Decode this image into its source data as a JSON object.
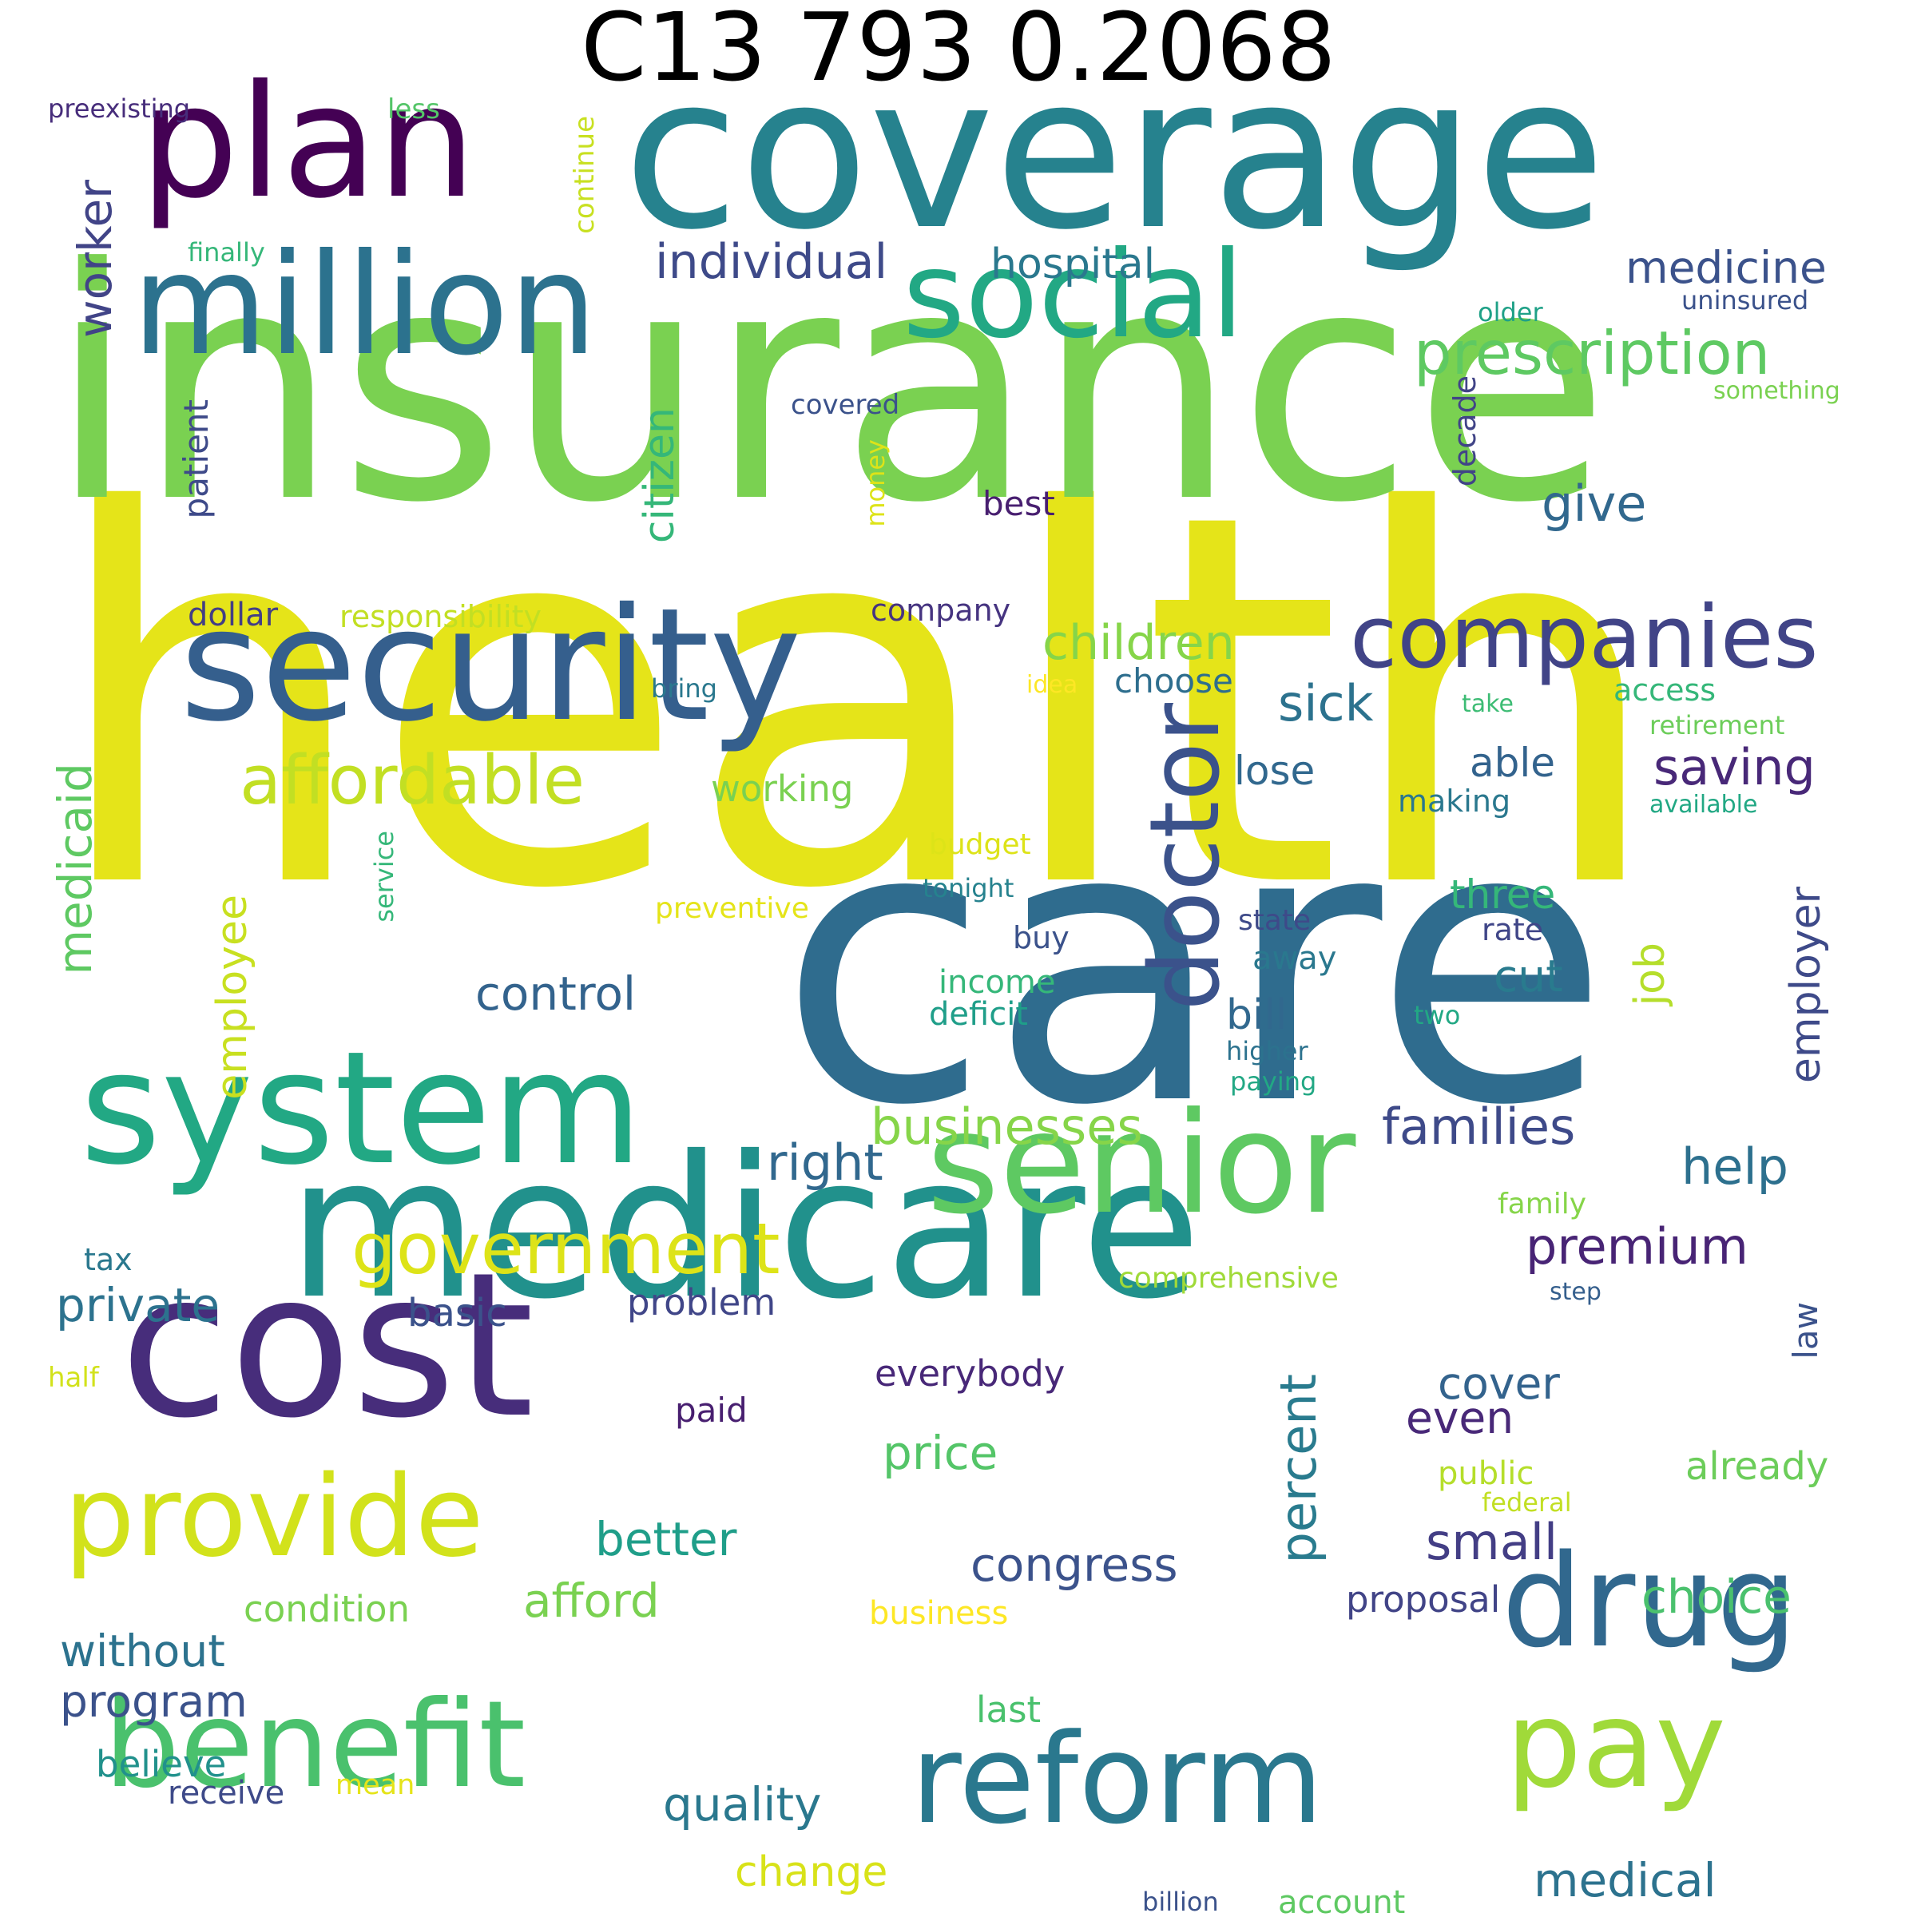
{
  "title": "C13 793 0.2068",
  "words": [
    {
      "text": "health",
      "color": "#e5e419"
    },
    {
      "text": "insurance",
      "color": "#7ad151"
    },
    {
      "text": "care",
      "color": "#2f6c8e"
    },
    {
      "text": "coverage",
      "color": "#26828e"
    },
    {
      "text": "medicare",
      "color": "#21918c"
    },
    {
      "text": "plan",
      "color": "#440154"
    },
    {
      "text": "million",
      "color": "#2c728e"
    },
    {
      "text": "social",
      "color": "#22a884"
    },
    {
      "text": "security",
      "color": "#355f8d"
    },
    {
      "text": "system",
      "color": "#22a884"
    },
    {
      "text": "cost",
      "color": "#472d7b"
    },
    {
      "text": "senior",
      "color": "#5ec962"
    },
    {
      "text": "provide",
      "color": "#d2e21b"
    },
    {
      "text": "benefit",
      "color": "#4ac16d"
    },
    {
      "text": "reform",
      "color": "#2a788e"
    },
    {
      "text": "drug",
      "color": "#31688e"
    },
    {
      "text": "pay",
      "color": "#a0da39"
    },
    {
      "text": "companies",
      "color": "#414487"
    },
    {
      "text": "doctor",
      "color": "#3b528b"
    },
    {
      "text": "government",
      "color": "#dde318"
    },
    {
      "text": "affordable",
      "color": "#c2df23"
    },
    {
      "text": "prescription",
      "color": "#5ec962"
    },
    {
      "text": "individual",
      "color": "#3e4a89"
    },
    {
      "text": "hospital",
      "color": "#2a788e"
    },
    {
      "text": "medicine",
      "color": "#3b528b"
    },
    {
      "text": "worker",
      "color": "#414487"
    },
    {
      "text": "children",
      "color": "#86d549"
    },
    {
      "text": "sick",
      "color": "#2c728e"
    },
    {
      "text": "give",
      "color": "#31688e"
    },
    {
      "text": "saving",
      "color": "#482878"
    },
    {
      "text": "citizen",
      "color": "#35b779"
    },
    {
      "text": "patient",
      "color": "#3e4a89"
    },
    {
      "text": "businesses",
      "color": "#86d549"
    },
    {
      "text": "families",
      "color": "#3e4a89"
    },
    {
      "text": "help",
      "color": "#2d708e"
    },
    {
      "text": "premium",
      "color": "#482475"
    },
    {
      "text": "right",
      "color": "#31688e"
    },
    {
      "text": "medicaid",
      "color": "#5ec962"
    },
    {
      "text": "employee",
      "color": "#c8e020"
    },
    {
      "text": "control",
      "color": "#33638d"
    },
    {
      "text": "job",
      "color": "#b5de2b"
    },
    {
      "text": "employer",
      "color": "#3e4a89"
    },
    {
      "text": "private",
      "color": "#2c728e"
    },
    {
      "text": "percent",
      "color": "#297b8e"
    },
    {
      "text": "small",
      "color": "#433e85"
    },
    {
      "text": "congress",
      "color": "#3b528b"
    },
    {
      "text": "better",
      "color": "#1f9e89"
    },
    {
      "text": "price",
      "color": "#54c568"
    },
    {
      "text": "choice",
      "color": "#4ac16d"
    },
    {
      "text": "afford",
      "color": "#7ad151"
    },
    {
      "text": "quality",
      "color": "#2a788e"
    },
    {
      "text": "medical",
      "color": "#2c728e"
    },
    {
      "text": "without",
      "color": "#2c728e"
    },
    {
      "text": "program",
      "color": "#3b528b"
    },
    {
      "text": "cover",
      "color": "#33638d"
    },
    {
      "text": "even",
      "color": "#482878"
    },
    {
      "text": "already",
      "color": "#6ccd5a"
    },
    {
      "text": "change",
      "color": "#d8e219"
    },
    {
      "text": "condition",
      "color": "#7ad151"
    },
    {
      "text": "proposal",
      "color": "#414487"
    },
    {
      "text": "lose",
      "color": "#31688e"
    },
    {
      "text": "able",
      "color": "#33638d"
    },
    {
      "text": "cut",
      "color": "#297b8e"
    },
    {
      "text": "three",
      "color": "#35b779"
    },
    {
      "text": "bill",
      "color": "#31688e"
    },
    {
      "text": "law",
      "color": "#3b528b"
    },
    {
      "text": "everybody",
      "color": "#482878"
    },
    {
      "text": "paid",
      "color": "#481f70"
    },
    {
      "text": "problem",
      "color": "#404688"
    },
    {
      "text": "basic",
      "color": "#3b528b"
    },
    {
      "text": "working",
      "color": "#7ad151"
    },
    {
      "text": "responsibility",
      "color": "#c2df23"
    },
    {
      "text": "dollar",
      "color": "#433e85"
    },
    {
      "text": "choose",
      "color": "#2e6e8e"
    },
    {
      "text": "company",
      "color": "#463480"
    },
    {
      "text": "best",
      "color": "#481f70"
    },
    {
      "text": "decade",
      "color": "#414487"
    },
    {
      "text": "continue",
      "color": "#c8e020"
    },
    {
      "text": "money",
      "color": "#dde318"
    },
    {
      "text": "preexisting",
      "color": "#472d7b"
    },
    {
      "text": "less",
      "color": "#54c568"
    },
    {
      "text": "finally",
      "color": "#35b779"
    },
    {
      "text": "covered",
      "color": "#3b528b"
    },
    {
      "text": "older",
      "color": "#1fa187"
    },
    {
      "text": "uninsured",
      "color": "#3b528b"
    },
    {
      "text": "something",
      "color": "#7ad151"
    },
    {
      "text": "access",
      "color": "#35b779"
    },
    {
      "text": "take",
      "color": "#3dbc74"
    },
    {
      "text": "retirement",
      "color": "#6ccd5a"
    },
    {
      "text": "making",
      "color": "#2a788e"
    },
    {
      "text": "available",
      "color": "#22a884"
    },
    {
      "text": "idea",
      "color": "#fde725"
    },
    {
      "text": "bring",
      "color": "#2a788e"
    },
    {
      "text": "budget",
      "color": "#dde318"
    },
    {
      "text": "tonight",
      "color": "#26828e"
    },
    {
      "text": "preventive",
      "color": "#e5e419"
    },
    {
      "text": "service",
      "color": "#35b779"
    },
    {
      "text": "state",
      "color": "#3e4a89"
    },
    {
      "text": "rate",
      "color": "#404688"
    },
    {
      "text": "buy",
      "color": "#3b528b"
    },
    {
      "text": "away",
      "color": "#2a788e"
    },
    {
      "text": "income",
      "color": "#35b779"
    },
    {
      "text": "deficit",
      "color": "#1f9e89"
    },
    {
      "text": "two",
      "color": "#22a884"
    },
    {
      "text": "higher",
      "color": "#2c728e"
    },
    {
      "text": "paying",
      "color": "#22a884"
    },
    {
      "text": "family",
      "color": "#86d549"
    },
    {
      "text": "comprehensive",
      "color": "#a0da39"
    },
    {
      "text": "step",
      "color": "#355f8d"
    },
    {
      "text": "tax",
      "color": "#2a788e"
    },
    {
      "text": "half",
      "color": "#d2e21b"
    },
    {
      "text": "public",
      "color": "#b5de2b"
    },
    {
      "text": "federal",
      "color": "#c2df23"
    },
    {
      "text": "business",
      "color": "#fde725"
    },
    {
      "text": "last",
      "color": "#4ac16d"
    },
    {
      "text": "believe",
      "color": "#21918c"
    },
    {
      "text": "mean",
      "color": "#e5e419"
    },
    {
      "text": "receive",
      "color": "#3e4a89"
    },
    {
      "text": "billion",
      "color": "#3b528b"
    },
    {
      "text": "account",
      "color": "#5ec962"
    }
  ]
}
